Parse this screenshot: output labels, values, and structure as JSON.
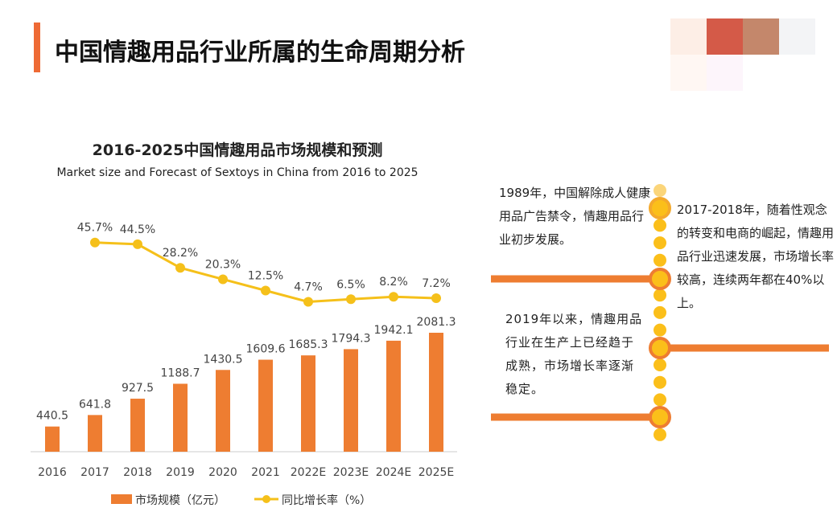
{
  "header": {
    "title": "中国情趣用品行业所属的生命周期分析"
  },
  "palette": [
    "#fdeee6",
    "#d45a48",
    "#c4876b",
    "#f3f4f6",
    "#fff7f3",
    "#fdf5fb"
  ],
  "chart_data": {
    "type": "bar+line",
    "title": "2016-2025中国情趣用品市场规模和预测",
    "subtitle": "Market size and Forecast of Sextoys in China from 2016 to 2025",
    "categories": [
      "2016",
      "2017",
      "2018",
      "2019",
      "2020",
      "2021",
      "2022E",
      "2023E",
      "2024E",
      "2025E"
    ],
    "series": [
      {
        "name": "市场规模（亿元）",
        "type": "bar",
        "color": "#ee7d31",
        "values": [
          440.5,
          641.8,
          927.5,
          1188.7,
          1430.5,
          1609.6,
          1685.3,
          1794.3,
          1942.1,
          2081.3
        ]
      },
      {
        "name": "同比增长率（%）",
        "type": "line",
        "color": "#f5c01a",
        "values": [
          null,
          45.7,
          44.5,
          28.2,
          20.3,
          12.5,
          4.7,
          6.5,
          8.2,
          7.2
        ],
        "labels": [
          "",
          "45.7%",
          "44.5%",
          "28.2%",
          "20.3%",
          "12.5%",
          "4.7%",
          "6.5%",
          "8.2%",
          "7.2%"
        ]
      }
    ],
    "legend": "bottom",
    "grid": false
  },
  "timeline": {
    "items": [
      "1989年，中国解除成人健康用品广告禁令，情趣用品行业初步发展。",
      "2017-2018年，随着性观念的转变和电商的崛起，情趣用品行业迅速发展，市场增长率较高，连续两年都在40%以上。",
      "2019年以来，情趣用品行业在生产上已经趋于成熟，市场增长率逐渐稳定。"
    ]
  }
}
